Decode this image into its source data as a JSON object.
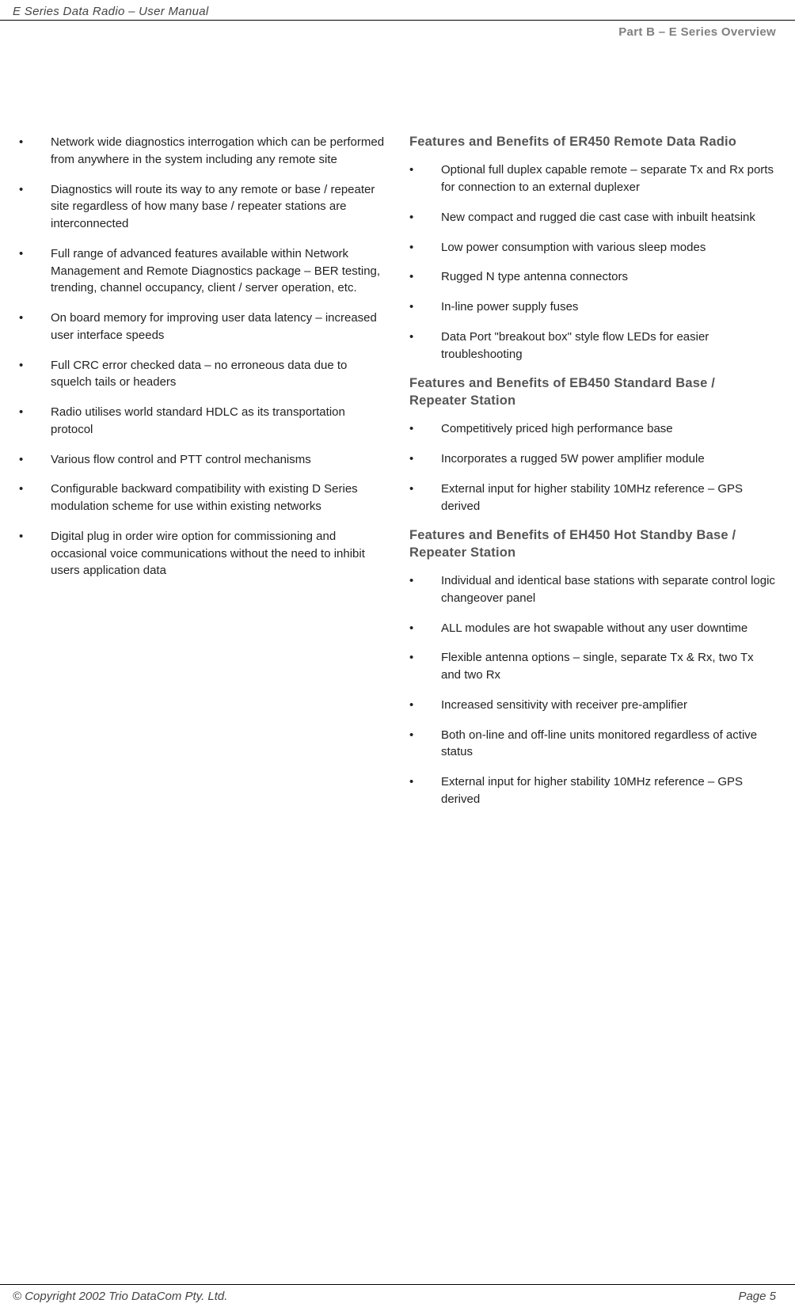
{
  "header": {
    "title": "E Series Data Radio – User Manual"
  },
  "section_label": "Part B – E Series Overview",
  "left_col": {
    "items": [
      "Network wide diagnostics interrogation which can be performed from anywhere in the system including any remote site",
      "Diagnostics will route its way to any remote or base / repeater site regardless of how many base / repeater stations are interconnected",
      "Full range of advanced features available within Network Management and Remote Diagnostics package – BER testing, trending, channel occupancy, client / server operation, etc.",
      "On board memory for improving user data latency – increased user interface speeds",
      "Full CRC error checked data – no erroneous data due to squelch tails or headers",
      "Radio utilises world standard HDLC as its transportation protocol",
      "Various flow control and PTT control mechanisms",
      "Configurable backward compatibility with existing D Series modulation scheme for use within existing networks",
      "Digital plug in order wire option for commissioning and occasional voice communications without the need to inhibit users application data"
    ]
  },
  "right_col": {
    "sections": [
      {
        "title": "Features and Benefits of ER450 Remote Data Radio",
        "items": [
          "Optional full duplex capable remote – separate Tx and Rx ports for connection to an external duplexer",
          "New compact and rugged die cast case with inbuilt heatsink",
          "Low power consumption with various sleep modes",
          "Rugged N type antenna connectors",
          "In-line power supply fuses",
          "Data Port \"breakout box\" style flow LEDs for easier troubleshooting"
        ]
      },
      {
        "title": "Features and Benefits of EB450 Standard Base / Repeater Station",
        "items": [
          "Competitively priced high performance base",
          "Incorporates a rugged 5W power amplifier module",
          "External input for higher stability 10MHz reference – GPS derived"
        ]
      },
      {
        "title": "Features and Benefits of EH450 Hot Standby Base / Repeater Station",
        "items": [
          "Individual and identical base stations with separate control logic changeover panel",
          "ALL modules are hot swapable without any user downtime",
          "Flexible antenna options – single, separate Tx & Rx, two Tx and two Rx",
          "Increased sensitivity with receiver pre-amplifier",
          "Both on-line and off-line units monitored regardless of active status",
          "External input for higher stability 10MHz reference – GPS derived"
        ]
      }
    ]
  },
  "footer": {
    "copyright": "© Copyright 2002 Trio DataCom Pty. Ltd.",
    "page": "Page 5"
  }
}
